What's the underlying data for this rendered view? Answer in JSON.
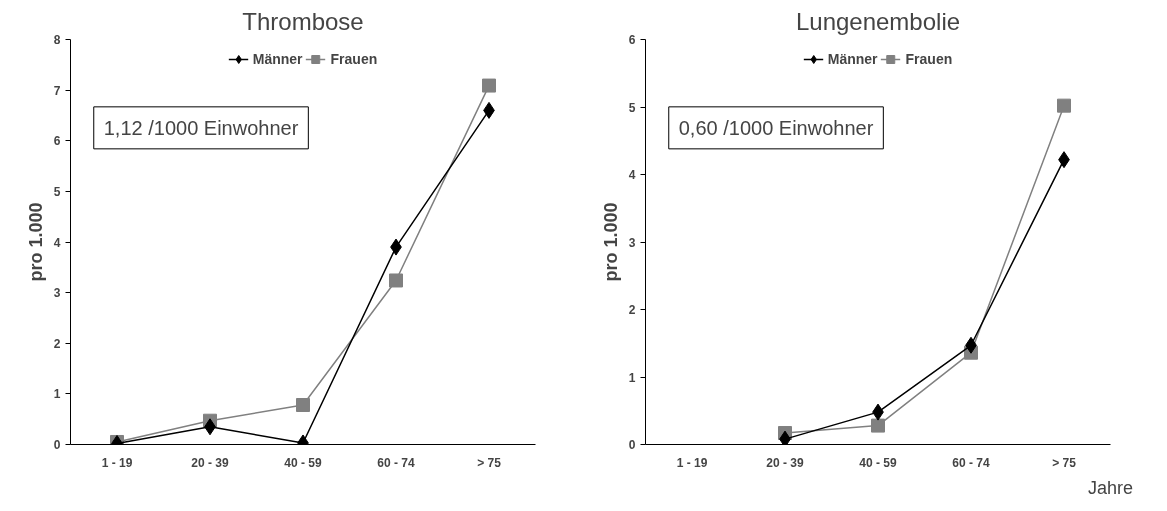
{
  "chart_data": [
    {
      "type": "line",
      "title": "Thrombose",
      "ylabel": "pro 1.000",
      "categories": [
        "1 - 19",
        "20 - 39",
        "40 - 59",
        "60 - 74",
        "> 75"
      ],
      "ylim": [
        0,
        8
      ],
      "yticks": [
        0,
        1,
        2,
        3,
        4,
        5,
        6,
        7,
        8
      ],
      "legend": "top",
      "grid": false,
      "annotations": [
        "1,12 /1000 Einwohner"
      ],
      "series": [
        {
          "name": "Männer",
          "color": "#000000",
          "marker": "diamond",
          "values": [
            0.02,
            0.35,
            0.03,
            3.9,
            6.6
          ]
        },
        {
          "name": "Frauen",
          "color": "#808080",
          "marker": "square",
          "values": [
            0.05,
            0.47,
            0.78,
            3.24,
            7.09
          ]
        }
      ]
    },
    {
      "type": "line",
      "title": "Lungenembolie",
      "ylabel": "pro 1.000",
      "xlabel": "Jahre",
      "categories": [
        "1 - 19",
        "20 - 39",
        "40 - 59",
        "60 - 74",
        "> 75"
      ],
      "ylim": [
        0,
        6
      ],
      "yticks": [
        0,
        1,
        2,
        3,
        4,
        5,
        6
      ],
      "legend": "top",
      "grid": false,
      "annotations": [
        "0,60 /1000 Einwohner"
      ],
      "series": [
        {
          "name": "Männer",
          "color": "#000000",
          "marker": "diamond",
          "values": [
            null,
            0.08,
            0.48,
            1.47,
            4.22
          ]
        },
        {
          "name": "Frauen",
          "color": "#808080",
          "marker": "square",
          "values": [
            null,
            0.17,
            0.28,
            1.36,
            5.02
          ]
        }
      ]
    }
  ]
}
